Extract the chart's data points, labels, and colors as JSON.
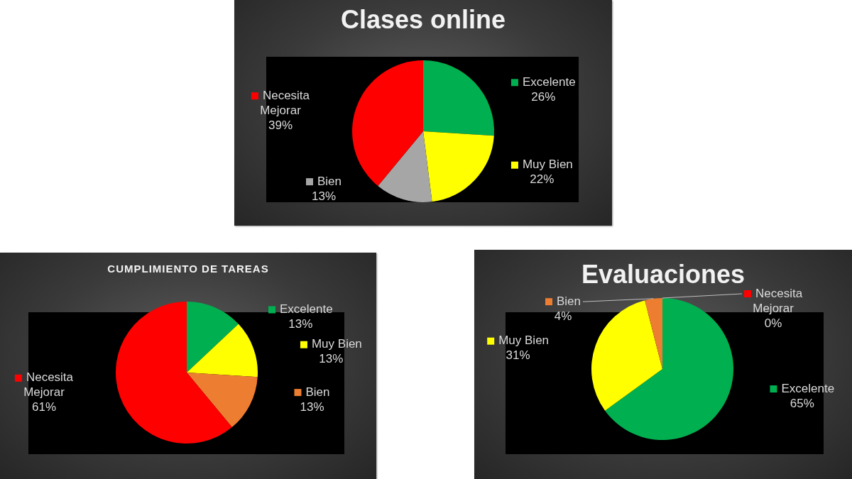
{
  "chart_data": [
    {
      "type": "pie",
      "title": "Clases online",
      "categories": [
        "Excelente",
        "Muy Bien",
        "Bien",
        "Necesita Mejorar"
      ],
      "values": [
        26,
        22,
        13,
        39
      ],
      "colors": [
        "#00b050",
        "#ffff00",
        "#a6a6a6",
        "#ff0000"
      ],
      "value_labels": [
        "26%",
        "22%",
        "13%",
        "39%"
      ],
      "legend": "bottom left"
    },
    {
      "type": "pie",
      "title": "CUMPLIMIENTO DE TAREAS",
      "categories": [
        "Excelente",
        "Muy Bien",
        "Bien",
        "Necesita Mejorar"
      ],
      "values": [
        13,
        13,
        13,
        61
      ],
      "colors": [
        "#00b050",
        "#ffff00",
        "#ed7d31",
        "#ff0000"
      ],
      "value_labels": [
        "13%",
        "13%",
        "13%",
        "61%"
      ],
      "legend": "right"
    },
    {
      "type": "pie",
      "title": "Evaluaciones",
      "categories": [
        "Excelente",
        "Muy Bien",
        "Bien",
        "Necesita Mejorar"
      ],
      "values": [
        65,
        31,
        4,
        0
      ],
      "colors": [
        "#00b050",
        "#ffff00",
        "#ed7d31",
        "#ff0000"
      ],
      "value_labels": [
        "65%",
        "31%",
        "4%",
        "0%"
      ],
      "legend": "right"
    }
  ]
}
